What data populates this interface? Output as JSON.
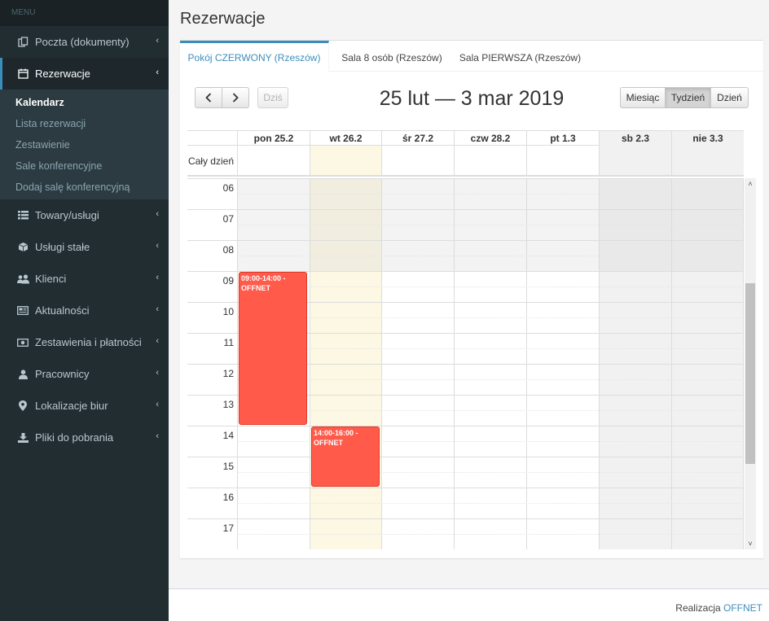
{
  "sidebar": {
    "header": "MENU",
    "items": [
      {
        "label": "Poczta (dokumenty)",
        "icon": "copy-icon"
      },
      {
        "label": "Rezerwacje",
        "icon": "calendar-icon",
        "active": true
      },
      {
        "label": "Towary/usługi",
        "icon": "list-icon"
      },
      {
        "label": "Usługi stałe",
        "icon": "cube-icon"
      },
      {
        "label": "Klienci",
        "icon": "users-icon"
      },
      {
        "label": "Aktualności",
        "icon": "newspaper-icon"
      },
      {
        "label": "Zestawienia i płatności",
        "icon": "money-icon"
      },
      {
        "label": "Pracownicy",
        "icon": "user-icon"
      },
      {
        "label": "Lokalizacje biur",
        "icon": "map-marker-icon"
      },
      {
        "label": "Pliki do pobrania",
        "icon": "download-icon"
      }
    ],
    "submenu": [
      "Kalendarz",
      "Lista rezerwacji",
      "Zestawienie",
      "Sale konferencyjne",
      "Dodaj salę konferencyjną"
    ]
  },
  "page": {
    "title": "Rezerwacje"
  },
  "tabs": [
    "Pokój CZERWONY (Rzeszów)",
    "Sala 8 osób (Rzeszów)",
    "Sala PIERWSZA (Rzeszów)"
  ],
  "toolbar": {
    "prev": "‹",
    "next": "›",
    "today": "Dziś",
    "title": "25 lut — 3 mar 2019",
    "views": [
      "Miesiąc",
      "Tydzień",
      "Dzień"
    ],
    "active_view": "Tydzień"
  },
  "calendar": {
    "days": [
      "pon 25.2",
      "wt 26.2",
      "śr 27.2",
      "czw 28.2",
      "pt 1.3",
      "sb 2.3",
      "nie 3.3"
    ],
    "allday_label": "Cały dzień",
    "hours": [
      "06",
      "07",
      "08",
      "09",
      "10",
      "11",
      "12",
      "13",
      "14",
      "15",
      "16",
      "17"
    ],
    "events": [
      {
        "day": 0,
        "start": 9,
        "end": 14,
        "text": "09:00-14:00 - OFFNET"
      },
      {
        "day": 1,
        "start": 14,
        "end": 16,
        "text": "14:00-16:00 - OFFNET"
      }
    ],
    "colors": {
      "event": "#ff5a4a",
      "today": "#fcf8e3",
      "accent": "#3c8dbc"
    }
  },
  "footer": {
    "prefix": "Realizacja",
    "link": "OFFNET"
  }
}
